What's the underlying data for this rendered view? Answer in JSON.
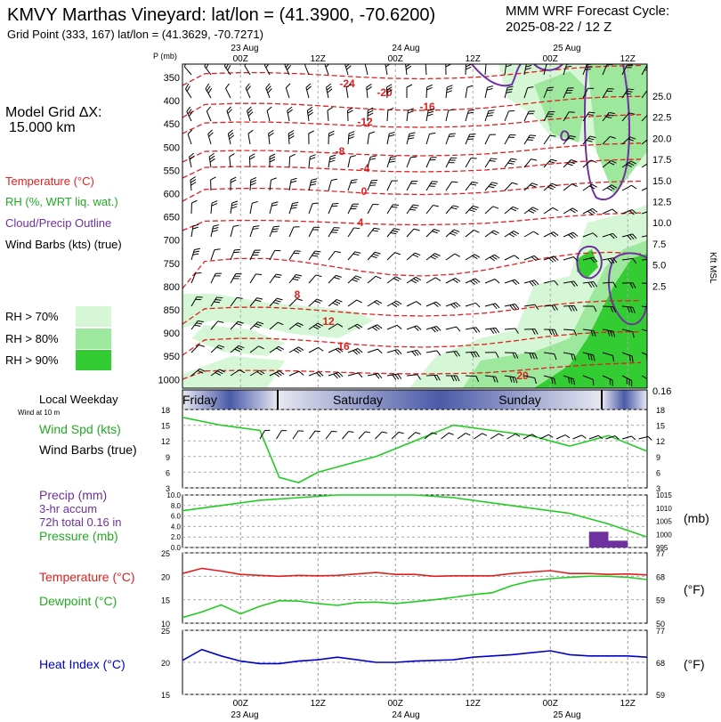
{
  "header": {
    "title": "KMVY Marthas Vineyard:  lat/lon = (41.3900, -70.6200)",
    "subtitle": "Grid Point (333, 167) lat/lon = (41.3629, -70.7271)",
    "cycle_line1": "MMM WRF Forecast Cycle:",
    "cycle_line2": "2025-08-22 / 12  Z"
  },
  "legend": {
    "grid_label": "Model Grid ΔX:",
    "grid_value": "15.000 km",
    "temperature": "Temperature (°C)",
    "rh": "RH (%, WRT liq. wat.)",
    "cloud": "Cloud/Precip Outline",
    "wind": "Wind Barbs (kts) (true)",
    "rh70": "RH > 70%",
    "rh80": "RH > 80%",
    "rh90": "RH > 90%"
  },
  "colors": {
    "temperature": "#e02020",
    "rh": "#22cc22",
    "cloud": "#7030a0",
    "heat_index": "#0000cc",
    "rh70": "#d6f7d6",
    "rh80": "#9ee89e",
    "rh90": "#33cc33",
    "weekday_band": "#4a5aa8"
  },
  "time_axis": {
    "top_dates": [
      "23 Aug",
      "24 Aug",
      "25 Aug"
    ],
    "ticks": [
      "00Z",
      "12Z",
      "00Z",
      "12Z",
      "00Z",
      "12Z"
    ],
    "bottom_dates": [
      "23 Aug",
      "24 Aug",
      "25 Aug"
    ]
  },
  "weekday": {
    "label": "Local Weekday",
    "sublabel": "Wind at 10 m",
    "days": [
      "Friday",
      "Saturday",
      "Sunday"
    ]
  },
  "chart_data": [
    {
      "type": "contour",
      "name": "sounding",
      "ylabel": "P (mb)",
      "y2label": "Kft MSL",
      "pressure_ticks": [
        "350",
        "400",
        "450",
        "500",
        "550",
        "600",
        "650",
        "700",
        "750",
        "800",
        "850",
        "900",
        "950",
        "1000"
      ],
      "height_ticks": [
        "25.0",
        "22.5",
        "20.0",
        "17.5",
        "15.0",
        "12.5",
        "10.0",
        "7.5",
        "5.0",
        "2.5",
        "0.16"
      ],
      "temperature_labels": [
        "-24",
        "-20",
        "-16",
        "-12",
        "-8",
        "-4",
        "0",
        "4",
        "8",
        "12",
        "16",
        "20"
      ]
    },
    {
      "type": "line",
      "name": "surface-wind",
      "label": "Wind Spd (kts)",
      "label2": "Wind Barbs (true)",
      "ylim": [
        3,
        18
      ],
      "ticks": [
        "18",
        "15",
        "12",
        "9",
        "6",
        "3"
      ],
      "x": [
        0,
        6,
        12,
        15,
        18,
        21,
        24,
        30,
        36,
        42,
        48,
        54,
        60,
        66,
        72
      ],
      "values": [
        16.5,
        15,
        14,
        5,
        4,
        6,
        7,
        9,
        12,
        15,
        14,
        13,
        11,
        13,
        10
      ]
    },
    {
      "type": "bar+line",
      "name": "precip-pressure",
      "precip_label": "Precip (mm)",
      "precip_sub": "3-hr accum",
      "precip_total": "72h total 0.16 in",
      "pressure_label": "Pressure (mb)",
      "unit": "(mb)",
      "precip_ticks": [
        "10.0",
        "8.0",
        "6.0",
        "4.0",
        "2.0",
        "0.0"
      ],
      "pressure_ticks": [
        "1015",
        "1010",
        "1005",
        "1000",
        "995"
      ],
      "precip_x": [
        66,
        69
      ],
      "precip_values": [
        3.0,
        1.3
      ],
      "pressure_x": [
        0,
        6,
        12,
        18,
        24,
        30,
        36,
        42,
        48,
        54,
        60,
        66,
        72
      ],
      "pressure_values": [
        1009,
        1011,
        1013,
        1014,
        1015,
        1015,
        1015,
        1014,
        1012,
        1010,
        1008,
        1004,
        999
      ]
    },
    {
      "type": "line",
      "name": "temp-dewpoint",
      "label_t": "Temperature (°C)",
      "label_d": "Dewpoint (°C)",
      "unit": "(°F)",
      "ylim": [
        10,
        25
      ],
      "ticks_left": [
        "25",
        "20",
        "15",
        "10"
      ],
      "ticks_right": [
        "77",
        "68",
        "59",
        "50"
      ],
      "x": [
        0,
        3,
        6,
        9,
        12,
        15,
        18,
        21,
        24,
        27,
        30,
        33,
        36,
        39,
        42,
        45,
        48,
        51,
        54,
        57,
        60,
        63,
        66,
        69,
        72
      ],
      "temperature": [
        20.6,
        21.7,
        21.1,
        20.4,
        20.2,
        20.0,
        20.2,
        20.1,
        20.2,
        20.5,
        20.8,
        20.4,
        20.4,
        20.0,
        20.1,
        20.1,
        20.1,
        20.6,
        20.9,
        21.2,
        20.6,
        20.6,
        20.4,
        20.5,
        20.3
      ],
      "dewpoint": [
        11.2,
        12.4,
        13.9,
        12.0,
        13.6,
        14.8,
        14.7,
        14.2,
        13.8,
        14.4,
        14.5,
        14.2,
        14.6,
        15.0,
        15.5,
        16.1,
        16.5,
        18.0,
        19.0,
        19.5,
        19.8,
        20.0,
        20.0,
        19.8,
        19.3
      ]
    },
    {
      "type": "line",
      "name": "heat-index",
      "label": "Heat Index (°C)",
      "unit": "(°F)",
      "ylim": [
        15,
        25
      ],
      "ticks_left": [
        "25",
        "20",
        "15"
      ],
      "ticks_right": [
        "77",
        "68",
        "59"
      ],
      "x": [
        0,
        3,
        6,
        9,
        12,
        15,
        18,
        21,
        24,
        27,
        30,
        33,
        36,
        39,
        42,
        45,
        48,
        51,
        54,
        57,
        60,
        63,
        66,
        69,
        72
      ],
      "values": [
        20.3,
        22.0,
        21.0,
        20.2,
        19.8,
        19.8,
        20.2,
        20.4,
        20.8,
        20.4,
        20.0,
        20.0,
        20.2,
        20.3,
        20.4,
        20.8,
        21.0,
        21.2,
        21.5,
        21.8,
        21.2,
        21.0,
        21.0,
        21.0,
        20.8
      ]
    }
  ]
}
